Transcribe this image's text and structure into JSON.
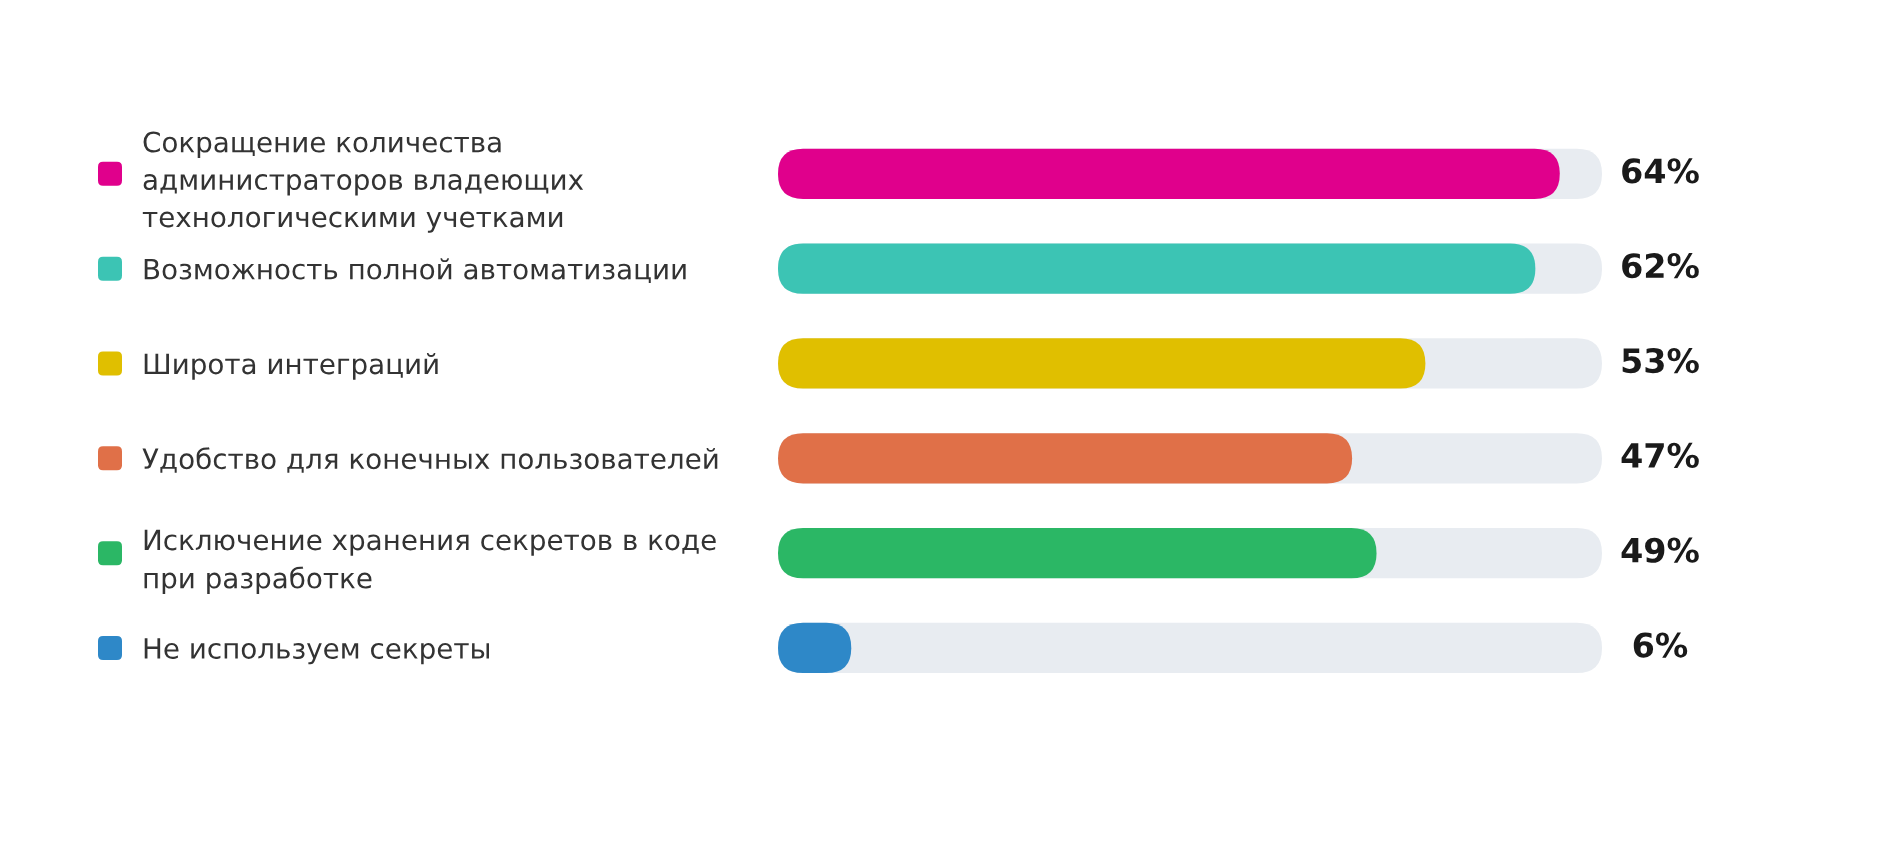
{
  "chart_data": {
    "type": "bar",
    "orientation": "horizontal",
    "categories": [
      "Сокращение количества\nадминистраторов владеющих\nтехнологическими учетками",
      "Возможность полной автоматизации",
      "Широта интеграций",
      "Удобство для конечных пользователей",
      "Исключение хранения секретов в коде\nпри разработке",
      "Не используем секреты"
    ],
    "values": [
      64,
      62,
      53,
      47,
      49,
      6
    ],
    "colors": [
      "#e0008c",
      "#3cc4b4",
      "#e0bf00",
      "#e07048",
      "#2bb765",
      "#2e88c8"
    ],
    "value_labels": [
      "64%",
      "62%",
      "53%",
      "47%",
      "49%",
      "6%"
    ],
    "tick_labels": "y"
  }
}
